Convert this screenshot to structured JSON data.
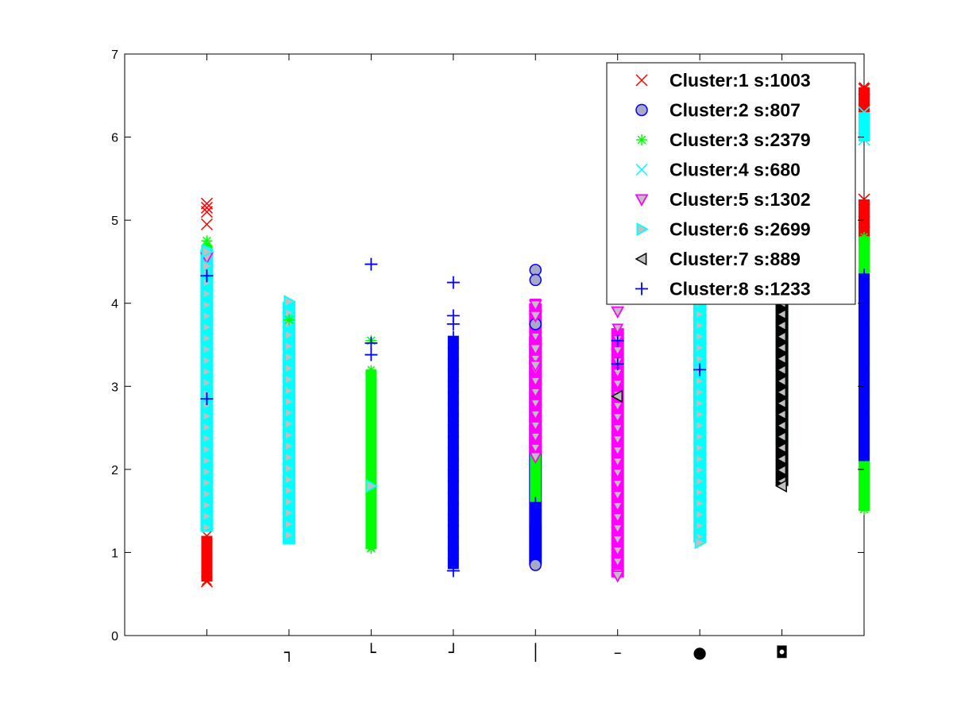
{
  "chart_data": {
    "type": "scatter",
    "title": "",
    "xlabel": "",
    "ylabel": "",
    "xlim": [
      0,
      9
    ],
    "ylim": [
      0,
      7
    ],
    "yticks": [
      0,
      1,
      2,
      3,
      4,
      5,
      6,
      7
    ],
    "x_tick_labels": [
      "",
      "┐",
      "└",
      "┘",
      "│",
      "–",
      "●",
      "◘",
      ""
    ],
    "grid": false,
    "legend_position": "top-right",
    "series": [
      {
        "name": "Cluster:1 s:1003",
        "color": "#ff0000",
        "marker": "x",
        "columns": [
          {
            "x": 1,
            "ymin": 0.65,
            "ymax": 1.2
          },
          {
            "x": 9,
            "ymin": 4.7,
            "ymax": 5.25
          },
          {
            "x": 9,
            "ymin": 5.95,
            "ymax": 6.6
          }
        ],
        "outliers": [
          [
            1,
            4.95
          ],
          [
            1,
            5.1
          ],
          [
            1,
            5.15
          ],
          [
            1,
            5.2
          ],
          [
            1,
            0.65
          ],
          [
            9,
            6.58
          ],
          [
            9,
            6.45
          ],
          [
            9,
            5.25
          ],
          [
            9,
            4.98
          ]
        ]
      },
      {
        "name": "Cluster:2 s:807",
        "color": "#0000ff",
        "marker": "o",
        "columns": [
          {
            "x": 5,
            "ymin": 0.85,
            "ymax": 3.6
          }
        ],
        "outliers": [
          [
            5,
            4.4
          ],
          [
            5,
            4.28
          ],
          [
            5,
            3.75
          ],
          [
            5,
            0.85
          ]
        ]
      },
      {
        "name": "Cluster:3 s:2379",
        "color": "#00ff00",
        "marker": "*",
        "columns": [
          {
            "x": 1,
            "ymin": 1.3,
            "ymax": 4.7
          },
          {
            "x": 3,
            "ymin": 1.05,
            "ymax": 3.2
          },
          {
            "x": 5,
            "ymin": 1.35,
            "ymax": 3.55
          },
          {
            "x": 9,
            "ymin": 1.5,
            "ymax": 4.8
          }
        ],
        "outliers": [
          [
            1,
            4.75
          ],
          [
            2,
            3.8
          ],
          [
            3,
            3.55
          ],
          [
            3,
            1.05
          ],
          [
            9,
            1.52
          ]
        ]
      },
      {
        "name": "Cluster:4 s:680",
        "color": "#00ffff",
        "marker": "x",
        "columns": [
          {
            "x": 9,
            "ymin": 5.95,
            "ymax": 6.3
          }
        ],
        "outliers": [
          [
            9,
            6.3
          ],
          [
            9,
            5.97
          ]
        ]
      },
      {
        "name": "Cluster:5 s:1302",
        "color": "#ff00ff",
        "marker": "v",
        "columns": [
          {
            "x": 1,
            "ymin": 3.5,
            "ymax": 4.5
          },
          {
            "x": 5,
            "ymin": 2.2,
            "ymax": 4.0
          },
          {
            "x": 6,
            "ymin": 0.7,
            "ymax": 3.7
          },
          {
            "x": 7,
            "ymin": 2.6,
            "ymax": 4.0
          }
        ],
        "outliers": [
          [
            5,
            3.98
          ],
          [
            5,
            3.85
          ],
          [
            5,
            3.45
          ],
          [
            5,
            3.25
          ],
          [
            5,
            2.15
          ],
          [
            6,
            3.9
          ],
          [
            6,
            0.72
          ],
          [
            1,
            4.55
          ]
        ]
      },
      {
        "name": "Cluster:6 s:2699",
        "color": "#00ffff",
        "marker": ">",
        "columns": [
          {
            "x": 1,
            "ymin": 1.25,
            "ymax": 4.65
          },
          {
            "x": 2,
            "ymin": 1.1,
            "ymax": 4.02
          },
          {
            "x": 7,
            "ymin": 1.12,
            "ymax": 4.0
          },
          {
            "x": 8,
            "ymin": 2.3,
            "ymax": 4.0
          }
        ],
        "outliers": [
          [
            1,
            4.62
          ],
          [
            1,
            4.45
          ],
          [
            2,
            4.02
          ],
          [
            3,
            1.8
          ],
          [
            7,
            1.12
          ]
        ]
      },
      {
        "name": "Cluster:7 s:889",
        "color": "#000000",
        "marker": "<",
        "columns": [
          {
            "x": 8,
            "ymin": 1.8,
            "ymax": 4.0
          }
        ],
        "outliers": [
          [
            6,
            2.88
          ],
          [
            8,
            1.8
          ]
        ]
      },
      {
        "name": "Cluster:8 s:1233",
        "color": "#0000ff",
        "marker": "+",
        "columns": [
          {
            "x": 4,
            "ymin": 0.8,
            "ymax": 3.6
          },
          {
            "x": 5,
            "ymin": 0.9,
            "ymax": 1.6
          },
          {
            "x": 9,
            "ymin": 2.1,
            "ymax": 4.35
          }
        ],
        "outliers": [
          [
            1,
            4.33
          ],
          [
            1,
            2.85
          ],
          [
            3,
            4.47
          ],
          [
            3,
            3.52
          ],
          [
            3,
            3.38
          ],
          [
            4,
            4.25
          ],
          [
            4,
            3.85
          ],
          [
            4,
            3.75
          ],
          [
            4,
            0.78
          ],
          [
            6,
            3.55
          ],
          [
            6,
            3.27
          ],
          [
            7,
            3.2
          ]
        ]
      }
    ]
  }
}
